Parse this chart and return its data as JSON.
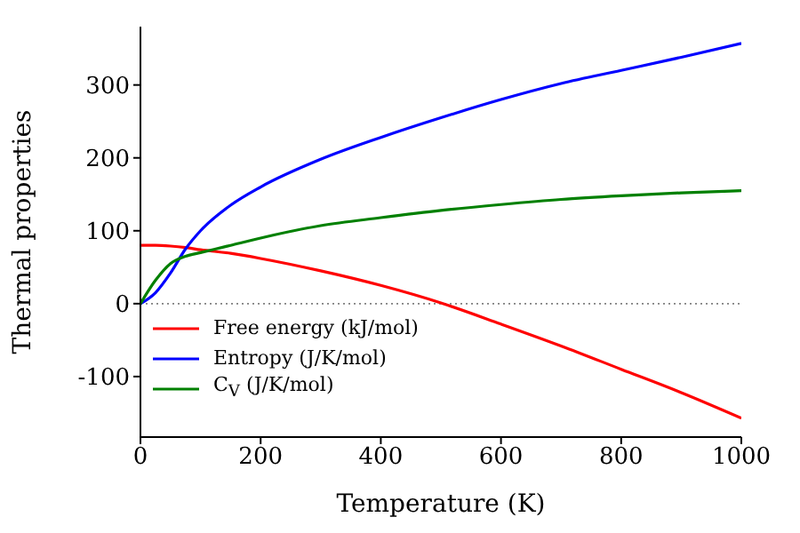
{
  "chart_data": {
    "type": "line",
    "xlabel": "Temperature (K)",
    "ylabel": "Thermal properties",
    "x": [
      0,
      25,
      50,
      75,
      100,
      150,
      200,
      300,
      400,
      500,
      600,
      700,
      800,
      900,
      1000
    ],
    "series": [
      {
        "name": "Free energy (kJ/mol)",
        "color": "#ff0000",
        "values": [
          80,
          80,
          79,
          77,
          74,
          69,
          62,
          45,
          25,
          1,
          -28,
          -58,
          -90,
          -122,
          -157
        ]
      },
      {
        "name": "Entropy (J/K/mol)",
        "color": "#0000ff",
        "values": [
          0,
          15,
          42,
          75,
          100,
          135,
          160,
          198,
          228,
          255,
          280,
          302,
          320,
          338,
          357
        ]
      },
      {
        "name": "C$_{V}$ (J/K/mol)",
        "color": "#008000",
        "values": [
          0,
          32,
          55,
          65,
          70,
          80,
          90,
          107,
          118,
          128,
          136,
          143,
          148,
          152,
          155
        ]
      }
    ],
    "xlim": [
      0,
      1000
    ],
    "xticks": [
      0,
      200,
      400,
      600,
      800,
      1000
    ],
    "ylim": [
      -183,
      380
    ],
    "yticks": [
      -100,
      0,
      100,
      200,
      300
    ],
    "ref_lines": [
      {
        "axis": "y",
        "value": 0,
        "color": "#808080",
        "line_style": "dotted"
      }
    ],
    "legend": "bottom left",
    "marker": "none",
    "line_style": "solid",
    "grid": false
  }
}
